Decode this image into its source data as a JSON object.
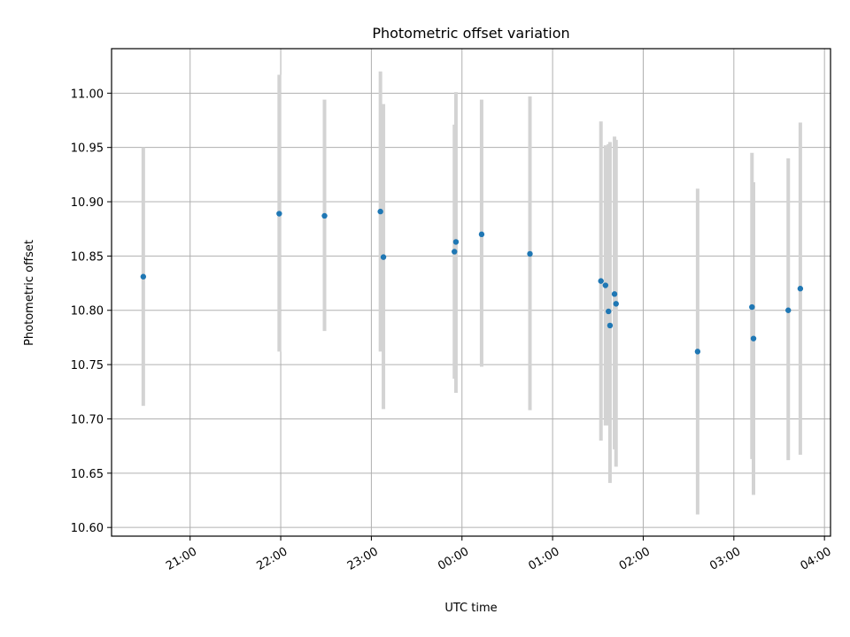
{
  "chart_data": {
    "type": "scatter",
    "title": "Photometric offset variation",
    "xlabel": "UTC time",
    "ylabel": "Photometric offset",
    "grid": true,
    "x_ticks": [
      "21:00",
      "22:00",
      "23:00",
      "00:00",
      "01:00",
      "02:00",
      "03:00",
      "04:00"
    ],
    "y_ticks": [
      "10.60",
      "10.65",
      "10.70",
      "10.75",
      "10.80",
      "10.85",
      "10.90",
      "10.95",
      "11.00"
    ],
    "xlim": [
      "20:08",
      "04:04"
    ],
    "ylim": [
      10.592,
      11.041
    ],
    "point_color": "#1f77b4",
    "errorbar_color": "#d3d3d3",
    "points": [
      {
        "x": "20:29",
        "y": 10.831,
        "ymin": 10.712,
        "ymax": 10.95
      },
      {
        "x": "21:59",
        "y": 10.889,
        "ymin": 10.762,
        "ymax": 11.017
      },
      {
        "x": "22:29",
        "y": 10.887,
        "ymin": 10.781,
        "ymax": 10.994
      },
      {
        "x": "23:06",
        "y": 10.891,
        "ymin": 10.762,
        "ymax": 11.02
      },
      {
        "x": "23:08",
        "y": 10.849,
        "ymin": 10.709,
        "ymax": 10.99
      },
      {
        "x": "23:55",
        "y": 10.854,
        "ymin": 10.737,
        "ymax": 10.971
      },
      {
        "x": "23:56",
        "y": 10.863,
        "ymin": 10.724,
        "ymax": 11.001
      },
      {
        "x": "00:13",
        "y": 10.87,
        "ymin": 10.748,
        "ymax": 10.994
      },
      {
        "x": "00:45",
        "y": 10.852,
        "ymin": 10.708,
        "ymax": 10.997
      },
      {
        "x": "01:32",
        "y": 10.827,
        "ymin": 10.68,
        "ymax": 10.974
      },
      {
        "x": "01:35",
        "y": 10.823,
        "ymin": 10.694,
        "ymax": 10.952
      },
      {
        "x": "01:37",
        "y": 10.799,
        "ymin": 10.694,
        "ymax": 10.953
      },
      {
        "x": "01:38",
        "y": 10.786,
        "ymin": 10.641,
        "ymax": 10.955
      },
      {
        "x": "01:41",
        "y": 10.815,
        "ymin": 10.672,
        "ymax": 10.96
      },
      {
        "x": "01:42",
        "y": 10.806,
        "ymin": 10.656,
        "ymax": 10.957
      },
      {
        "x": "02:36",
        "y": 10.762,
        "ymin": 10.612,
        "ymax": 10.912
      },
      {
        "x": "03:12",
        "y": 10.803,
        "ymin": 10.663,
        "ymax": 10.945
      },
      {
        "x": "03:13",
        "y": 10.774,
        "ymin": 10.63,
        "ymax": 10.918
      },
      {
        "x": "03:36",
        "y": 10.8,
        "ymin": 10.662,
        "ymax": 10.94
      },
      {
        "x": "03:44",
        "y": 10.82,
        "ymin": 10.667,
        "ymax": 10.973
      }
    ]
  }
}
